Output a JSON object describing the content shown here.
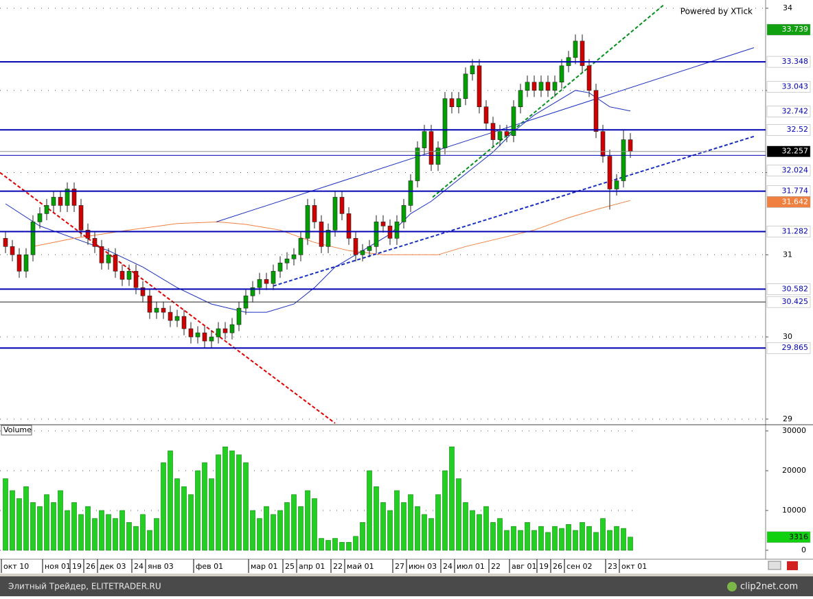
{
  "chart_data": {
    "type": "candlestick",
    "watermark": "Powered by XTick",
    "footer_left": "Элитный Трейдер, ELITETRADER.RU",
    "footer_right": "clip2net.com",
    "categories": [
      "окт 10",
      null,
      null,
      null,
      null,
      null,
      "ноя 01",
      null,
      null,
      null,
      "19",
      null,
      "26",
      null,
      "дек 03",
      null,
      null,
      null,
      null,
      "24",
      null,
      "янв 03",
      null,
      null,
      null,
      null,
      null,
      null,
      "фев 01",
      null,
      null,
      null,
      null,
      null,
      null,
      null,
      "мар 01",
      null,
      null,
      null,
      null,
      "25",
      null,
      "апр 01",
      null,
      null,
      null,
      null,
      "22",
      null,
      "май 01",
      null,
      null,
      null,
      null,
      null,
      null,
      "27",
      null,
      "июн 03",
      null,
      null,
      null,
      null,
      "24",
      null,
      "июл 01",
      null,
      null,
      null,
      null,
      "22",
      null,
      null,
      "авг 01",
      null,
      null,
      null,
      "19",
      null,
      "26",
      null,
      "сен 02",
      null,
      null,
      null,
      null,
      null,
      "23",
      null,
      "окт 01",
      null
    ],
    "open": [
      31.2,
      31.1,
      31.0,
      30.8,
      31.0,
      31.4,
      31.5,
      31.6,
      31.7,
      31.6,
      31.8,
      31.6,
      31.3,
      31.2,
      31.1,
      30.9,
      31.0,
      30.8,
      30.7,
      30.8,
      30.6,
      30.5,
      30.3,
      30.35,
      30.3,
      30.2,
      30.25,
      30.1,
      30.0,
      30.05,
      29.95,
      30.0,
      30.1,
      30.05,
      30.15,
      30.35,
      30.5,
      30.6,
      30.7,
      30.65,
      30.8,
      30.9,
      30.95,
      31.0,
      31.2,
      31.6,
      31.4,
      31.1,
      31.3,
      31.7,
      31.5,
      31.2,
      31.0,
      31.05,
      31.1,
      31.4,
      31.35,
      31.2,
      31.4,
      31.6,
      31.9,
      32.3,
      32.5,
      32.1,
      32.3,
      32.9,
      32.8,
      32.9,
      33.2,
      33.3,
      32.8,
      32.6,
      32.4,
      32.5,
      32.45,
      32.8,
      33.0,
      33.1,
      33.0,
      33.1,
      33.0,
      33.1,
      33.3,
      33.4,
      33.6,
      33.3,
      33.0,
      32.5,
      32.2,
      31.8,
      31.9,
      32.4
    ],
    "high": [
      31.28,
      31.18,
      31.08,
      31.08,
      31.48,
      31.58,
      31.68,
      31.78,
      31.78,
      31.88,
      31.88,
      31.68,
      31.38,
      31.28,
      31.18,
      31.08,
      31.08,
      30.88,
      30.88,
      30.88,
      30.68,
      30.58,
      30.43,
      30.43,
      30.38,
      30.33,
      30.33,
      30.18,
      30.13,
      30.13,
      30.08,
      30.18,
      30.18,
      30.23,
      30.43,
      30.58,
      30.68,
      30.78,
      30.78,
      30.88,
      30.98,
      31.03,
      31.08,
      31.28,
      31.68,
      31.68,
      31.48,
      31.38,
      31.78,
      31.78,
      31.58,
      31.28,
      31.13,
      31.18,
      31.48,
      31.48,
      31.43,
      31.48,
      31.68,
      31.98,
      32.38,
      32.58,
      32.58,
      32.38,
      32.98,
      32.98,
      32.98,
      33.28,
      33.38,
      33.38,
      32.88,
      32.68,
      32.58,
      32.58,
      32.88,
      33.08,
      33.18,
      33.18,
      33.18,
      33.18,
      33.18,
      33.38,
      33.48,
      33.68,
      33.68,
      33.38,
      33.08,
      32.58,
      32.28,
      31.98,
      32.52,
      32.48
    ],
    "low": [
      31.02,
      30.92,
      30.72,
      30.72,
      30.92,
      31.32,
      31.42,
      31.52,
      31.52,
      31.52,
      31.52,
      31.22,
      31.12,
      31.02,
      30.82,
      30.82,
      30.72,
      30.62,
      30.62,
      30.52,
      30.42,
      30.22,
      30.22,
      30.22,
      30.12,
      30.12,
      30.02,
      29.92,
      29.92,
      29.87,
      29.87,
      29.92,
      29.97,
      29.97,
      30.07,
      30.27,
      30.42,
      30.52,
      30.57,
      30.57,
      30.72,
      30.82,
      30.87,
      30.92,
      31.12,
      31.32,
      31.02,
      31.02,
      31.22,
      31.42,
      31.12,
      30.92,
      30.92,
      30.97,
      31.02,
      31.27,
      31.12,
      31.12,
      31.32,
      31.52,
      31.82,
      32.22,
      32.02,
      32.02,
      32.22,
      32.72,
      32.72,
      32.82,
      33.12,
      32.72,
      32.52,
      32.32,
      32.32,
      32.37,
      32.37,
      32.72,
      32.92,
      32.92,
      32.92,
      32.92,
      32.92,
      33.02,
      33.22,
      33.32,
      33.22,
      32.92,
      32.42,
      32.12,
      31.55,
      31.72,
      31.82,
      32.18
    ],
    "close": [
      31.1,
      31.0,
      30.8,
      31.0,
      31.4,
      31.5,
      31.6,
      31.7,
      31.6,
      31.8,
      31.6,
      31.3,
      31.2,
      31.1,
      30.9,
      31.0,
      30.8,
      30.7,
      30.8,
      30.6,
      30.5,
      30.3,
      30.35,
      30.3,
      30.2,
      30.25,
      30.1,
      30.0,
      30.05,
      29.95,
      30.0,
      30.1,
      30.05,
      30.15,
      30.35,
      30.5,
      30.6,
      30.7,
      30.65,
      30.8,
      30.9,
      30.95,
      31.0,
      31.2,
      31.6,
      31.4,
      31.1,
      31.3,
      31.7,
      31.5,
      31.2,
      31.0,
      31.05,
      31.1,
      31.4,
      31.35,
      31.2,
      31.4,
      31.6,
      31.9,
      32.3,
      32.5,
      32.1,
      32.3,
      32.9,
      32.8,
      32.9,
      33.2,
      33.3,
      32.8,
      32.6,
      32.4,
      32.5,
      32.45,
      32.8,
      33.0,
      33.1,
      33.0,
      33.1,
      33.0,
      33.1,
      33.3,
      33.4,
      33.6,
      33.3,
      33.0,
      32.5,
      32.2,
      31.8,
      31.9,
      32.4,
      32.26
    ],
    "up_color": "#00a000",
    "down_color": "#d00000",
    "ylim": [
      28.94,
      34.1
    ],
    "yticks": [
      29,
      30,
      31,
      32,
      33,
      34
    ],
    "grid": true,
    "moving_averages": [
      {
        "color": "#1a2fc0",
        "x": [
          0,
          5,
          10,
          15,
          20,
          25,
          30,
          35,
          38,
          42,
          45,
          48,
          50,
          53,
          56,
          59,
          62,
          65,
          68,
          71,
          74,
          77,
          80,
          83,
          85,
          88,
          91
        ],
        "values": [
          31.62,
          31.35,
          31.2,
          31.05,
          30.85,
          30.6,
          30.4,
          30.3,
          30.3,
          30.4,
          30.6,
          30.85,
          30.95,
          31.1,
          31.25,
          31.5,
          31.65,
          31.85,
          32.05,
          32.25,
          32.5,
          32.7,
          32.85,
          33.0,
          32.97,
          32.8,
          32.75
        ]
      },
      {
        "color": "#f08040",
        "x": [
          4,
          10,
          18,
          25,
          31,
          35,
          40,
          45,
          50,
          55,
          60,
          63,
          67,
          72,
          77,
          82,
          86,
          91
        ],
        "values": [
          31.1,
          31.2,
          31.3,
          31.38,
          31.4,
          31.37,
          31.3,
          31.15,
          31.05,
          31.0,
          31.0,
          31.0,
          31.1,
          31.2,
          31.3,
          31.45,
          31.55,
          31.66
        ]
      }
    ],
    "trendlines": [
      {
        "color": "#e00000",
        "dashed": true,
        "width": 2,
        "x": [
          -0.8,
          48
        ],
        "values": [
          32.0,
          28.95
        ]
      },
      {
        "color": "#00901a",
        "dashed": true,
        "width": 2,
        "x": [
          62.2,
          96
        ],
        "values": [
          31.7,
          34.05
        ]
      },
      {
        "color": "#1a2fc0",
        "dashed": false,
        "width": 1,
        "x": [
          30.7,
          109
        ],
        "values": [
          31.4,
          33.52
        ]
      },
      {
        "color": "#1a2fc0",
        "dashed": true,
        "width": 2,
        "x": [
          39,
          109
        ],
        "values": [
          30.62,
          32.44
        ]
      }
    ],
    "levels": [
      {
        "value": 33.348,
        "color": "#0000b0",
        "width": 2
      },
      {
        "value": 32.52,
        "color": "#0000b0",
        "width": 2
      },
      {
        "value": 32.257,
        "color": "#909090",
        "width": 1
      },
      {
        "value": 32.21,
        "color": "#0000b0",
        "width": 1
      },
      {
        "value": 31.774,
        "color": "#0000b0",
        "width": 2
      },
      {
        "value": 31.282,
        "color": "#0000b0",
        "width": 2
      },
      {
        "value": 30.582,
        "color": "#0000b0",
        "width": 2
      },
      {
        "value": 30.425,
        "color": "#202020",
        "width": 1
      },
      {
        "value": 29.865,
        "color": "#0000b0",
        "width": 2
      }
    ],
    "axis_markers": [
      {
        "value": 33.739,
        "bg": "#10a010",
        "fg": "#ffffff"
      },
      {
        "value": 33.348,
        "bg": "#ffffff",
        "fg": "#0000b0"
      },
      {
        "value": 33.043,
        "bg": "#ffffff",
        "fg": "#0000b0"
      },
      {
        "value": 32.742,
        "bg": "#ffffff",
        "fg": "#0000b0"
      },
      {
        "value": 32.52,
        "bg": "#ffffff",
        "fg": "#0000b0"
      },
      {
        "value": 32.257,
        "bg": "#000000",
        "fg": "#ffffff"
      },
      {
        "value": 32.024,
        "bg": "#ffffff",
        "fg": "#0000b0"
      },
      {
        "value": 31.774,
        "bg": "#ffffff",
        "fg": "#0000b0"
      },
      {
        "value": 31.642,
        "bg": "#f08040",
        "fg": "#ffffff"
      },
      {
        "value": 31.282,
        "bg": "#ffffff",
        "fg": "#0000b0"
      },
      {
        "value": 30.582,
        "bg": "#ffffff",
        "fg": "#0000b0"
      },
      {
        "value": 30.425,
        "bg": "#ffffff",
        "fg": "#0000b0"
      },
      {
        "value": 29.865,
        "bg": "#ffffff",
        "fg": "#0000b0"
      }
    ],
    "volume": {
      "name": "Volume",
      "color": "#22d022",
      "edge": "#108010",
      "values": [
        18000,
        15000,
        13000,
        16000,
        12000,
        11000,
        14000,
        12000,
        15000,
        10000,
        12000,
        9000,
        11000,
        8000,
        10000,
        9000,
        8000,
        10000,
        7000,
        6000,
        9000,
        5000,
        8000,
        22000,
        25000,
        18000,
        16000,
        14000,
        20000,
        22000,
        18000,
        24000,
        26000,
        25000,
        24000,
        22000,
        10000,
        8000,
        11000,
        9000,
        10000,
        12000,
        14000,
        11000,
        15000,
        13000,
        3000,
        2500,
        3000,
        2000,
        2000,
        3500,
        7000,
        20000,
        16000,
        12000,
        10000,
        15000,
        12000,
        14000,
        11000,
        9000,
        8000,
        14000,
        20000,
        26000,
        18000,
        12000,
        10000,
        9000,
        11000,
        7000,
        8000,
        5000,
        6000,
        5000,
        7000,
        5000,
        6000,
        4500,
        6000,
        5500,
        6500,
        5000,
        7000,
        6000,
        4500,
        8000,
        5000,
        6000,
        5500,
        3316
      ],
      "ylim": [
        -2240,
        31380
      ],
      "yticks": [
        0,
        10000,
        20000,
        30000
      ]
    }
  }
}
